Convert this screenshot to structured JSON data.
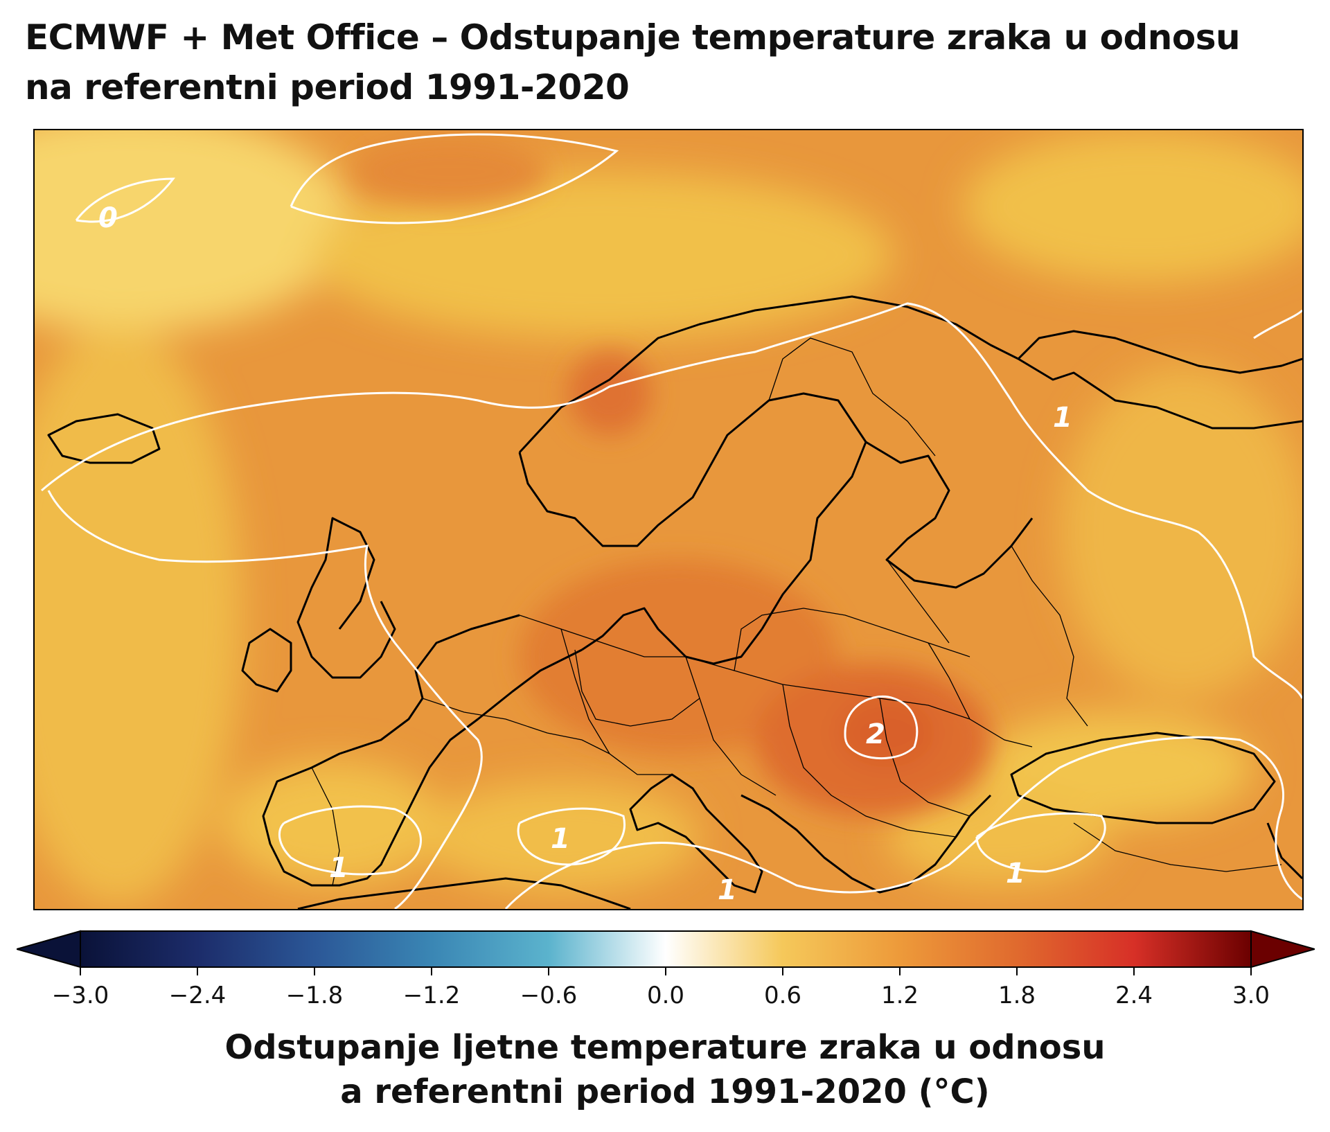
{
  "title": {
    "line1": "ECMWF + Met Office – Odstupanje temperature zraka u odnosu",
    "line2": "na referentni period 1991-2020"
  },
  "map": {
    "region": "Europe",
    "contour_labels": [
      {
        "id": "arctic-0",
        "text": "0"
      },
      {
        "id": "russia-1",
        "text": "1"
      },
      {
        "id": "balkan-2",
        "text": "2"
      },
      {
        "id": "iberia-1",
        "text": "1"
      },
      {
        "id": "med-1",
        "text": "1"
      },
      {
        "id": "sicily-1",
        "text": "1"
      },
      {
        "id": "turkey-1",
        "text": "1"
      }
    ],
    "colors": {
      "background_anomaly": "#e8973c",
      "cooler_zone": "#f2c34a",
      "warm_core": "#e06a2e",
      "contour_line": "#ffffff",
      "coastline": "#000000"
    }
  },
  "colorbar": {
    "min": -3.0,
    "max": 3.0,
    "extend": "both",
    "ticks": [
      "−3.0",
      "−2.4",
      "−1.8",
      "−1.2",
      "−0.6",
      "0.0",
      "0.6",
      "1.2",
      "1.8",
      "2.4",
      "3.0"
    ],
    "stops": [
      {
        "value": -3.0,
        "color": "#0a1238"
      },
      {
        "value": -2.4,
        "color": "#1c2c6a"
      },
      {
        "value": -1.8,
        "color": "#2b5797"
      },
      {
        "value": -1.2,
        "color": "#3a86b4"
      },
      {
        "value": -0.6,
        "color": "#5bb3cd"
      },
      {
        "value": 0.0,
        "color": "#ffffff"
      },
      {
        "value": 0.6,
        "color": "#f5c85a"
      },
      {
        "value": 1.2,
        "color": "#ed9a3a"
      },
      {
        "value": 1.8,
        "color": "#e06a2e"
      },
      {
        "value": 2.4,
        "color": "#d73027"
      },
      {
        "value": 3.0,
        "color": "#6b0000"
      }
    ],
    "label_line1": "Odstupanje ljetne temperature zraka u odnosu",
    "label_line2": "a referentni period 1991-2020 (°C)"
  }
}
